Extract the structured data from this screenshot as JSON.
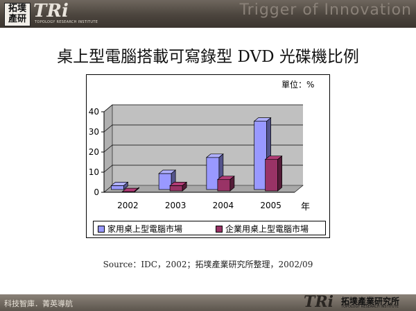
{
  "header": {
    "logo_cn": "拓墣產研",
    "logo_tri": "TRi",
    "logo_sub": "TOPOLOGY RESEARCH INSTITUTE",
    "tagline": "Trigger of Innovation"
  },
  "title": "桌上型電腦搭載可寫錄型 DVD 光碟機比例",
  "unit_label": "單位：%",
  "x_axis_unit": "年",
  "source": "Source：IDC，2002；拓墣產業研究所整理，2002/09",
  "footer": {
    "left_text": "科技智庫．菁英導航",
    "tri": "TRi",
    "name": "拓墣產業研究所",
    "sub": "TOPOLOGY RESEARCH INSTITUTE"
  },
  "chart_data": {
    "type": "bar",
    "categories": [
      "2002",
      "2003",
      "2004",
      "2005"
    ],
    "series": [
      {
        "name": "家用桌上型電腦市場",
        "values": [
          4,
          10,
          18,
          36
        ],
        "color": "#9999ff"
      },
      {
        "name": "企業用桌上型電腦市場",
        "values": [
          1,
          4,
          7,
          17
        ],
        "color": "#993366"
      }
    ],
    "ylim": [
      0,
      40
    ],
    "yticks": [
      0,
      10,
      20,
      30,
      40
    ],
    "grid": true,
    "legend_position": "bottom"
  }
}
